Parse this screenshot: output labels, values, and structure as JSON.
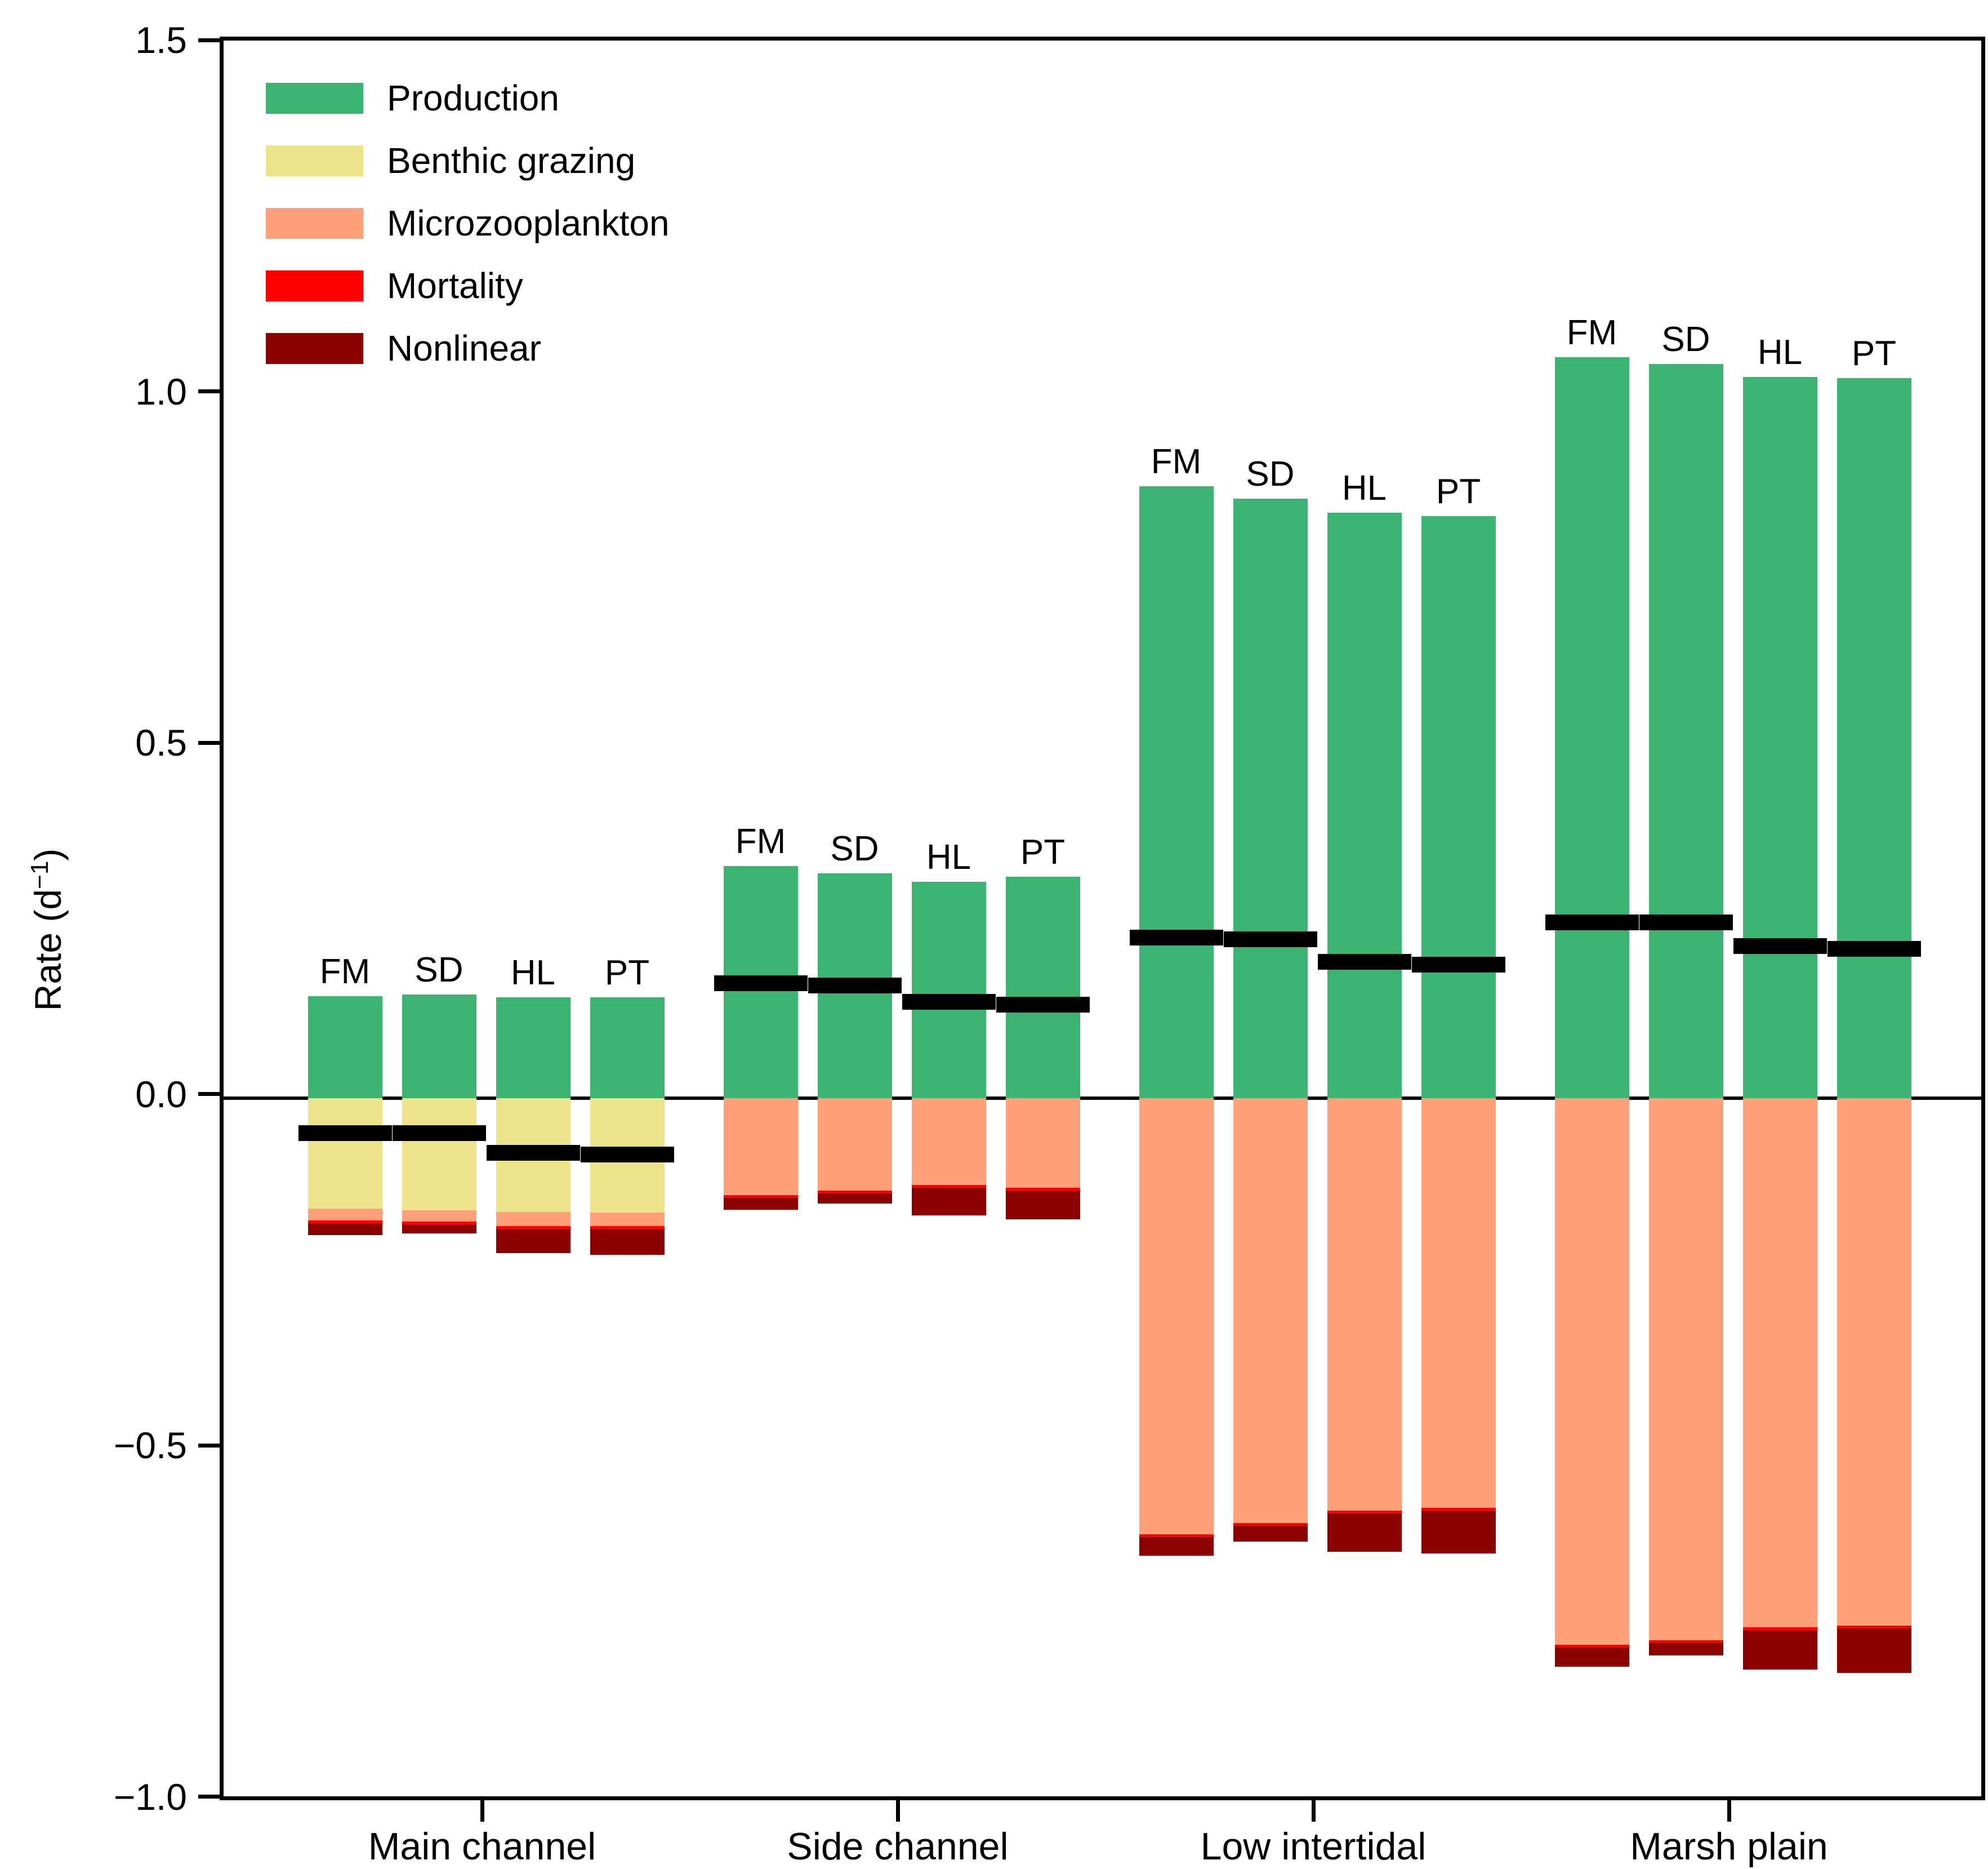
{
  "figure": {
    "background": "#ffffff"
  },
  "axis": {
    "ylabel": {
      "prefix": "Rate (d",
      "superscript": "−1",
      "suffix": ")"
    },
    "yticks": [
      {
        "value": 1.5,
        "label": "1.5"
      },
      {
        "value": 1.0,
        "label": "1.0"
      },
      {
        "value": 0.5,
        "label": "0.5"
      },
      {
        "value": 0.0,
        "label": "0.0"
      },
      {
        "value": -0.5,
        "label": "−0.5"
      },
      {
        "value": -1.0,
        "label": "−1.0"
      }
    ],
    "ylim": [
      -1.0,
      1.5
    ]
  },
  "legend": {
    "position": "upper-left",
    "items": [
      {
        "key": "production",
        "label": "Production",
        "color": "#3CB371"
      },
      {
        "key": "benthic_grazing",
        "label": "Benthic grazing",
        "color": "#EDE38B"
      },
      {
        "key": "microzooplankton",
        "label": "Microzooplankton",
        "color": "#FFA07A"
      },
      {
        "key": "mortality",
        "label": "Mortality",
        "color": "#FF0000"
      },
      {
        "key": "nonlinear",
        "label": "Nonlinear",
        "color": "#8B0000"
      }
    ]
  },
  "chart_data": {
    "type": "bar",
    "subtype": "grouped-stacked-diverging",
    "title": "",
    "xlabel": "",
    "ylabel": "Rate (d−1)",
    "ylim": [
      -1.0,
      1.5
    ],
    "grid": false,
    "net_marker_color": "#000000",
    "components_below_zero_order": [
      "benthic_grazing",
      "microzooplankton",
      "mortality",
      "nonlinear"
    ],
    "models": [
      "FM",
      "SD",
      "HL",
      "PT"
    ],
    "groups": [
      {
        "group": "Main channel",
        "bars": [
          {
            "label": "FM",
            "production": 0.145,
            "benthic_grazing": 0.157,
            "microzooplankton": 0.017,
            "mortality": 0.004,
            "nonlinear": 0.017,
            "net": -0.05
          },
          {
            "label": "SD",
            "production": 0.147,
            "benthic_grazing": 0.16,
            "microzooplankton": 0.016,
            "mortality": 0.004,
            "nonlinear": 0.013,
            "net": -0.05
          },
          {
            "label": "HL",
            "production": 0.143,
            "benthic_grazing": 0.162,
            "microzooplankton": 0.02,
            "mortality": 0.004,
            "nonlinear": 0.035,
            "net": -0.078
          },
          {
            "label": "PT",
            "production": 0.143,
            "benthic_grazing": 0.163,
            "microzooplankton": 0.019,
            "mortality": 0.004,
            "nonlinear": 0.037,
            "net": -0.08
          }
        ]
      },
      {
        "group": "Side channel",
        "bars": [
          {
            "label": "FM",
            "production": 0.33,
            "benthic_grazing": 0.0,
            "microzooplankton": 0.138,
            "mortality": 0.004,
            "nonlinear": 0.017,
            "net": 0.163
          },
          {
            "label": "SD",
            "production": 0.32,
            "benthic_grazing": 0.0,
            "microzooplankton": 0.132,
            "mortality": 0.004,
            "nonlinear": 0.014,
            "net": 0.16
          },
          {
            "label": "HL",
            "production": 0.308,
            "benthic_grazing": 0.0,
            "microzooplankton": 0.124,
            "mortality": 0.004,
            "nonlinear": 0.039,
            "net": 0.137
          },
          {
            "label": "PT",
            "production": 0.315,
            "benthic_grazing": 0.0,
            "microzooplankton": 0.128,
            "mortality": 0.004,
            "nonlinear": 0.041,
            "net": 0.133
          }
        ]
      },
      {
        "group": "Low intertidal",
        "bars": [
          {
            "label": "FM",
            "production": 0.871,
            "benthic_grazing": 0.0,
            "microzooplankton": 0.621,
            "mortality": 0.004,
            "nonlinear": 0.026,
            "net": 0.228
          },
          {
            "label": "SD",
            "production": 0.853,
            "benthic_grazing": 0.0,
            "microzooplankton": 0.605,
            "mortality": 0.004,
            "nonlinear": 0.022,
            "net": 0.226
          },
          {
            "label": "HL",
            "production": 0.833,
            "benthic_grazing": 0.0,
            "microzooplankton": 0.587,
            "mortality": 0.004,
            "nonlinear": 0.055,
            "net": 0.194
          },
          {
            "label": "PT",
            "production": 0.828,
            "benthic_grazing": 0.0,
            "microzooplankton": 0.583,
            "mortality": 0.004,
            "nonlinear": 0.061,
            "net": 0.19
          }
        ]
      },
      {
        "group": "Marsh plain",
        "bars": [
          {
            "label": "FM",
            "production": 1.054,
            "benthic_grazing": 0.0,
            "microzooplankton": 0.778,
            "mortality": 0.004,
            "nonlinear": 0.027,
            "net": 0.25
          },
          {
            "label": "SD",
            "production": 1.045,
            "benthic_grazing": 0.0,
            "microzooplankton": 0.772,
            "mortality": 0.004,
            "nonlinear": 0.017,
            "net": 0.25
          },
          {
            "label": "HL",
            "production": 1.026,
            "benthic_grazing": 0.0,
            "microzooplankton": 0.753,
            "mortality": 0.004,
            "nonlinear": 0.056,
            "net": 0.216
          },
          {
            "label": "PT",
            "production": 1.025,
            "benthic_grazing": 0.0,
            "microzooplankton": 0.751,
            "mortality": 0.004,
            "nonlinear": 0.063,
            "net": 0.212
          }
        ]
      }
    ]
  }
}
